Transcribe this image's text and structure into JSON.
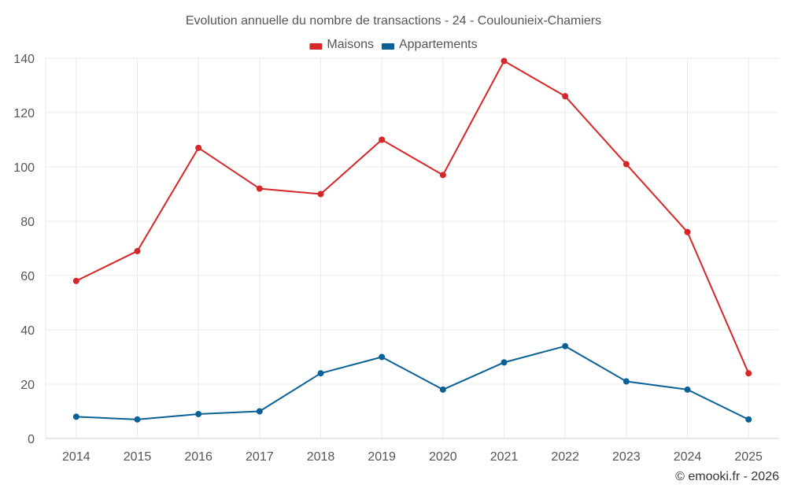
{
  "chart_data": {
    "type": "line",
    "title": "Evolution annuelle du nombre de transactions - 24 - Coulounieix-Chamiers",
    "categories": [
      "2014",
      "2015",
      "2016",
      "2017",
      "2018",
      "2019",
      "2020",
      "2021",
      "2022",
      "2023",
      "2024",
      "2025"
    ],
    "series": [
      {
        "name": "Maisons",
        "color": "#d62728",
        "values": [
          58,
          69,
          107,
          92,
          90,
          110,
          97,
          139,
          126,
          101,
          76,
          24
        ]
      },
      {
        "name": "Appartements",
        "color": "#0a6196",
        "values": [
          8,
          7,
          9,
          10,
          24,
          30,
          18,
          28,
          34,
          21,
          18,
          7
        ]
      }
    ],
    "yticks": [
      0,
      20,
      40,
      60,
      80,
      100,
      120,
      140
    ],
    "ylim": [
      0,
      140
    ],
    "xlabel": "",
    "ylabel": "",
    "legend_position": "top-center",
    "grid": true
  },
  "credit": "© emooki.fr - 2026"
}
